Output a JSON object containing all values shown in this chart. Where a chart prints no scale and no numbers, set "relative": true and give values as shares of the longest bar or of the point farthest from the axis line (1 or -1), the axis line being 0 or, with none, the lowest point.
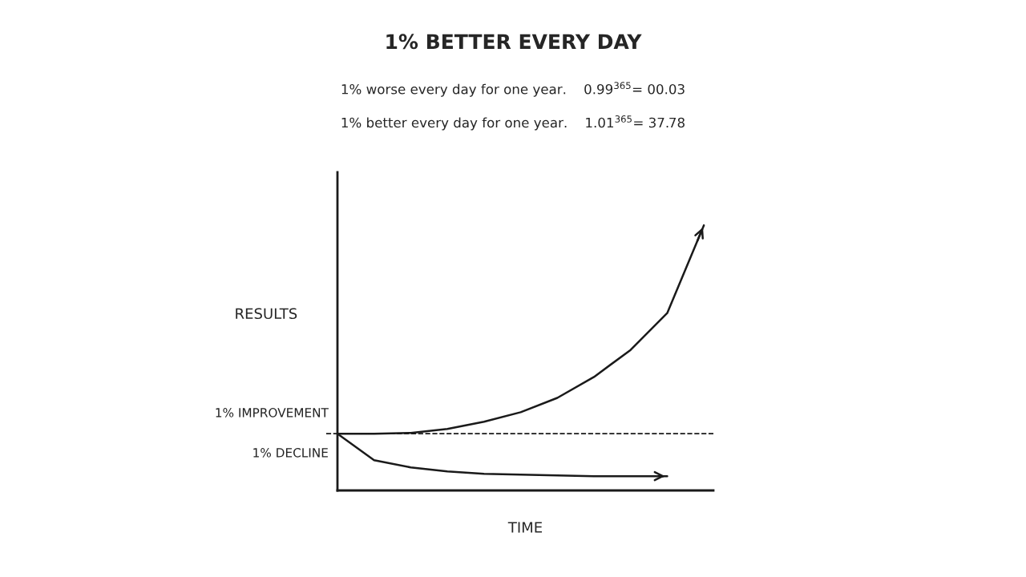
{
  "chart_data": {
    "type": "line",
    "relative": true,
    "title": "1% BETTER EVERY DAY",
    "annotations": [
      "1% worse every day for one year.    0.99$^{365}$= 00.03",
      "1% better every day for one year.    1.01$^{365}$= 37.78"
    ],
    "xlabel": "TIME",
    "ylabel": "RESULTS",
    "categories": [
      null,
      null,
      null,
      null,
      null,
      null,
      null,
      null,
      null,
      null,
      null
    ],
    "series": [
      {
        "name": "1% IMPROVEMENT",
        "color": "#1a1a1a",
        "values": [
          0.214,
          0.214,
          0.217,
          0.232,
          0.259,
          0.295,
          0.349,
          0.428,
          0.53,
          0.669,
          1.0
        ]
      },
      {
        "name": "1% DECLINE",
        "color": "#1a1a1a",
        "values": [
          0.214,
          0.114,
          0.087,
          0.072,
          0.063,
          0.06,
          0.057,
          0.054,
          0.054,
          0.054,
          null
        ]
      }
    ],
    "ref_lines": [
      {
        "axis": "y",
        "value": 0.214,
        "line_style": "dashed",
        "color": "#1a1a1a"
      }
    ]
  }
}
